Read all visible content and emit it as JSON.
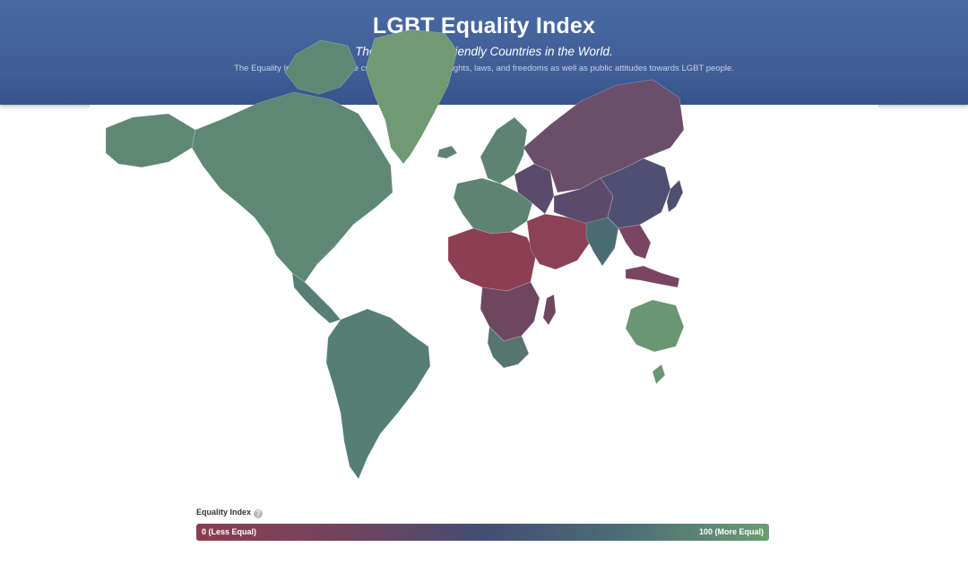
{
  "header": {
    "title": "LGBT Equality Index",
    "subtitle": "The most LGBT-Friendly Countries in the World.",
    "description": "The Equality Index measures the current status of LGBT rights, laws, and freedoms as well as public attitudes towards LGBT people."
  },
  "legend": {
    "title": "Equality Index",
    "help_icon": "question-circle-icon",
    "min_label": "0 (Less Equal)",
    "max_label": "100 (More Equal)",
    "colors": [
      "#8a3e52",
      "#434d73",
      "#6b9c72"
    ]
  },
  "map": {
    "regions": [
      {
        "name": "greenland",
        "color": "#6f9a72"
      },
      {
        "name": "north-america",
        "color": "#5e8874"
      },
      {
        "name": "south-america",
        "color": "#557e75"
      },
      {
        "name": "europe",
        "color": "#5d8373"
      },
      {
        "name": "russia",
        "color": "#6a4e6a"
      },
      {
        "name": "north-africa",
        "color": "#8c3f52"
      },
      {
        "name": "central-africa",
        "color": "#6f4660"
      },
      {
        "name": "southern-africa",
        "color": "#56756f"
      },
      {
        "name": "middle-east",
        "color": "#8c4256"
      },
      {
        "name": "central-asia",
        "color": "#5c4a6c"
      },
      {
        "name": "china",
        "color": "#4f4f72"
      },
      {
        "name": "india",
        "color": "#4a6d71"
      },
      {
        "name": "southeast-asia",
        "color": "#7a4560"
      },
      {
        "name": "australia",
        "color": "#6a9672"
      }
    ]
  }
}
